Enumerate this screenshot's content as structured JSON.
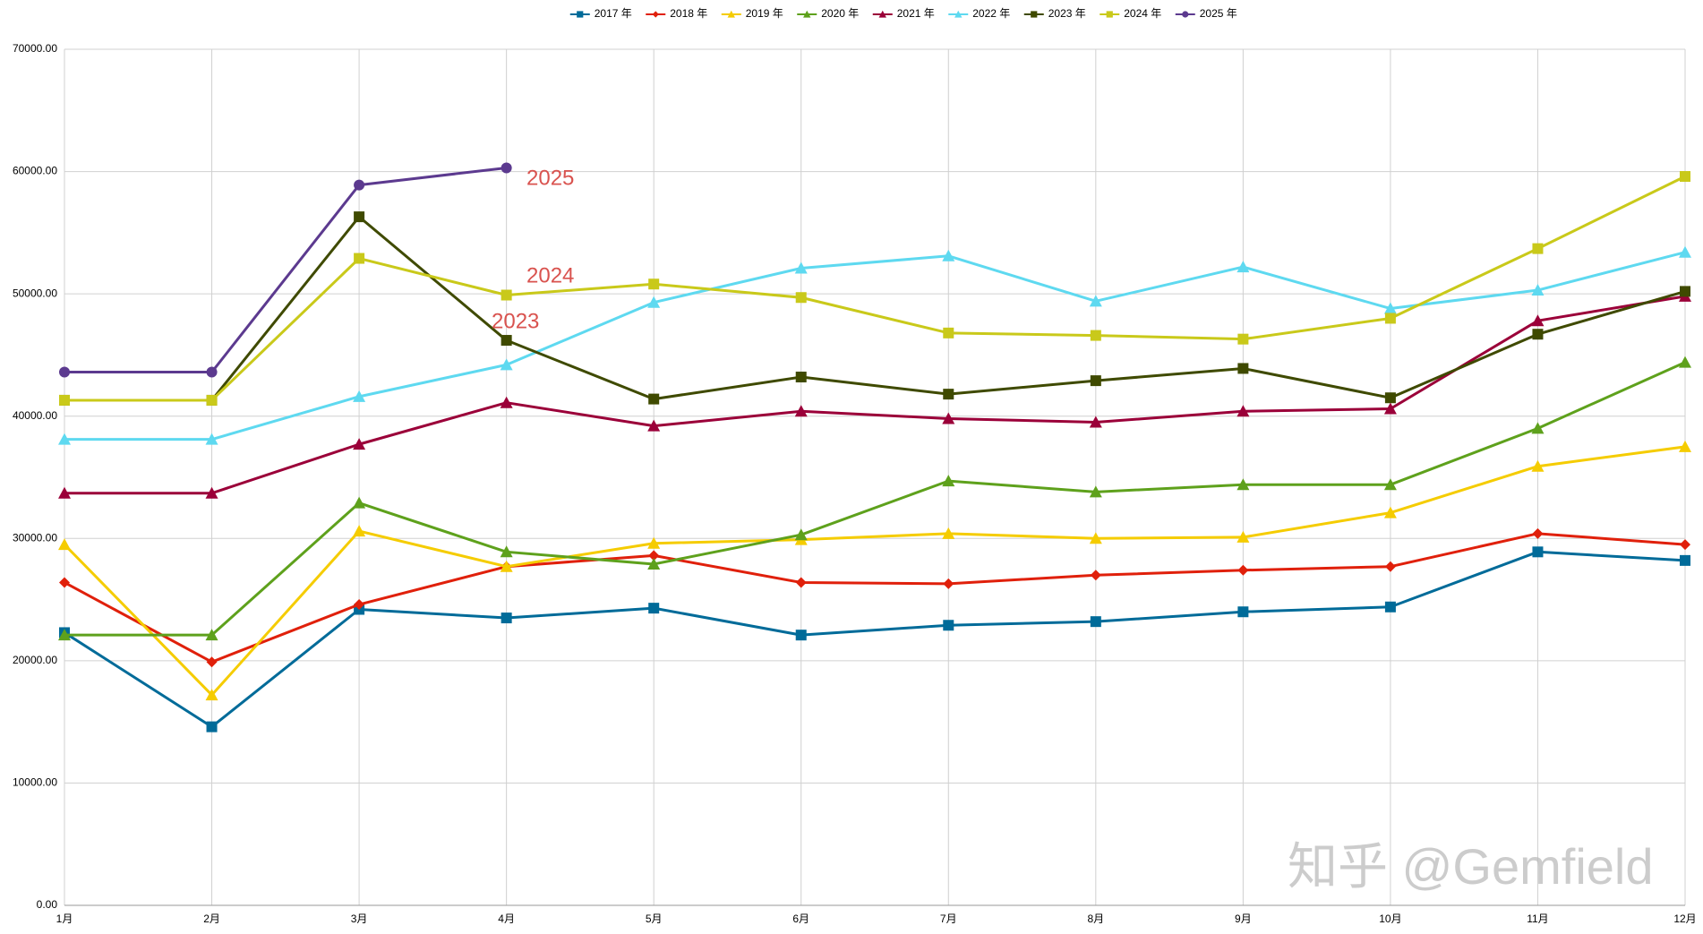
{
  "chart_data": {
    "type": "line",
    "categories": [
      "1月",
      "2月",
      "3月",
      "4月",
      "5月",
      "6月",
      "7月",
      "8月",
      "9月",
      "10月",
      "11月",
      "12月"
    ],
    "ylim": [
      0,
      70000
    ],
    "yticks": [
      {
        "value": 0,
        "label": "0.00"
      },
      {
        "value": 10000,
        "label": "10000.00"
      },
      {
        "value": 20000,
        "label": "20000.00"
      },
      {
        "value": 30000,
        "label": "30000.00"
      },
      {
        "value": 40000,
        "label": "40000.00"
      },
      {
        "value": 50000,
        "label": "50000.00"
      },
      {
        "value": 60000,
        "label": "60000.00"
      },
      {
        "value": 70000,
        "label": "70000.00"
      }
    ],
    "grid": true,
    "legend": "top",
    "series": [
      {
        "name": "2017 年",
        "color": "#006b99",
        "marker": "square",
        "values": [
          22300,
          14600,
          24200,
          23500,
          24300,
          22100,
          22900,
          23200,
          24000,
          24400,
          28900,
          28200
        ]
      },
      {
        "name": "2018 年",
        "color": "#e0200b",
        "marker": "diamond",
        "values": [
          26400,
          19900,
          24600,
          27700,
          28600,
          26400,
          26300,
          27000,
          27400,
          27700,
          30400,
          29500
        ]
      },
      {
        "name": "2019 年",
        "color": "#f5cc00",
        "marker": "triangle",
        "values": [
          29500,
          17200,
          30600,
          27700,
          29600,
          29900,
          30400,
          30000,
          30100,
          32100,
          35900,
          37500
        ]
      },
      {
        "name": "2020 年",
        "color": "#5ea11c",
        "marker": "triangle",
        "values": [
          22100,
          22100,
          32900,
          28900,
          27900,
          30300,
          34700,
          33800,
          34400,
          34400,
          39000,
          44400
        ]
      },
      {
        "name": "2021 年",
        "color": "#9b0039",
        "marker": "triangle",
        "values": [
          33700,
          33700,
          37700,
          41100,
          39200,
          40400,
          39800,
          39500,
          40400,
          40600,
          47800,
          49800
        ]
      },
      {
        "name": "2022 年",
        "color": "#5ed9f0",
        "marker": "triangle",
        "values": [
          38100,
          38100,
          41600,
          44200,
          49300,
          52100,
          53100,
          49400,
          52200,
          48800,
          50300,
          53400
        ]
      },
      {
        "name": "2023 年",
        "color": "#3f4a00",
        "marker": "square",
        "values": [
          41300,
          41300,
          56300,
          46200,
          41400,
          43200,
          41800,
          42900,
          43900,
          41500,
          46700,
          50200
        ]
      },
      {
        "name": "2024 年",
        "color": "#c9c91a",
        "marker": "square",
        "values": [
          41300,
          41300,
          52900,
          49900,
          50800,
          49700,
          46800,
          46600,
          46300,
          48000,
          53700,
          59600
        ]
      },
      {
        "name": "2025 年",
        "color": "#5c3a8f",
        "marker": "circle",
        "values": [
          43600,
          43600,
          58900,
          60300,
          null,
          null,
          null,
          null,
          null,
          null,
          null,
          null
        ]
      }
    ],
    "annotations": [
      "2025",
      "2024",
      "2023"
    ],
    "watermark": "知乎 @Gemfield"
  }
}
